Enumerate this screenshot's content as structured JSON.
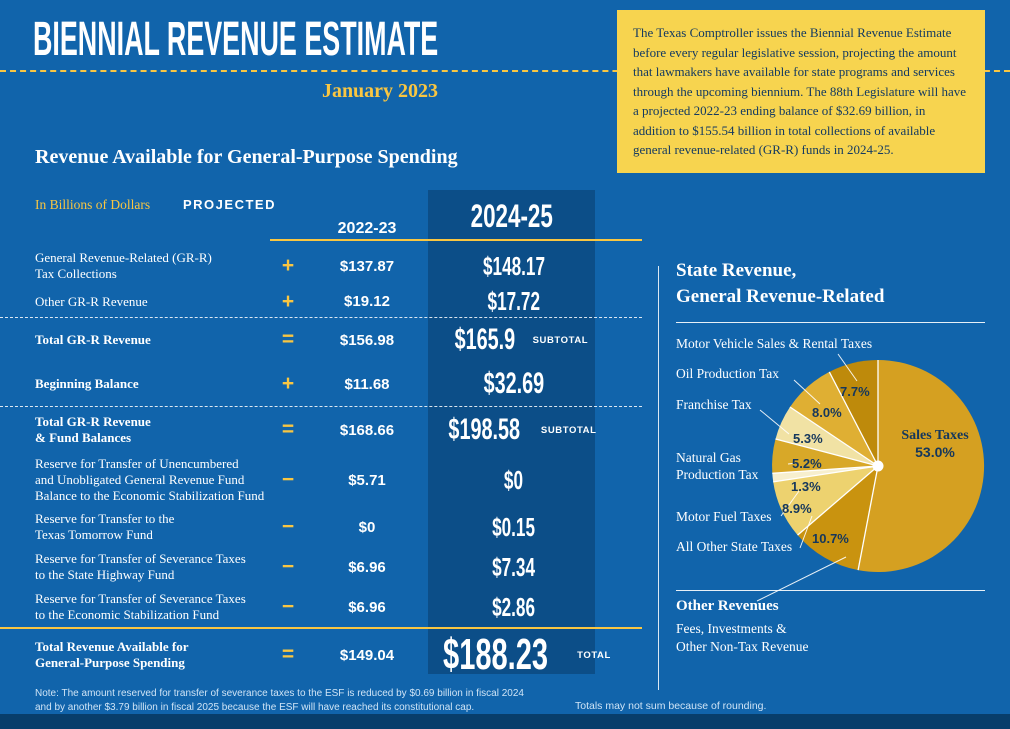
{
  "header": {
    "title": "BIENNIAL REVENUE ESTIMATE",
    "date": "January 2023",
    "callout": "The Texas Comptroller issues the Biennial Revenue Estimate before every regular legislative session, projecting the amount that lawmakers have available for state programs and services through the upcoming biennium. The 88th Legislature will have a projected 2022-23 ending balance of $32.69 billion, in addition to $155.54 billion in total collections of available general revenue-related (GR-R) funds in 2024-25."
  },
  "table": {
    "title": "Revenue Available for General-Purpose Spending",
    "units": "In Billions of Dollars",
    "projected": "PROJECTED",
    "note": "Note: The amount reserved for transfer of severance taxes to the ESF is reduced by $0.69 billion in fiscal 2024 and by another $3.79 billion in fiscal 2025 because the ESF will have reached its constitutional cap.",
    "rounding": "Totals may not sum because of rounding."
  },
  "chart_data": [
    {
      "type": "table",
      "title": "Revenue Available for General-Purpose Spending (Billions of Dollars, Projected)",
      "columns": [
        "2022-23",
        "2024-25"
      ],
      "rows": [
        {
          "label": "General Revenue-Related (GR-R)\nTax Collections",
          "op": "+",
          "v2223": "$137.87",
          "v2425": "$148.17",
          "bold": false,
          "size": "md",
          "lines": 2
        },
        {
          "label": "Other GR-R Revenue",
          "op": "+",
          "v2223": "$19.12",
          "v2425": "$17.72",
          "bold": false,
          "size": "md",
          "lines": 1
        },
        {
          "divider": "dashed"
        },
        {
          "label": "Total GR-R Revenue",
          "op": "=",
          "v2223": "$156.98",
          "v2425": "$165.9",
          "tag": "SUBTOTAL",
          "bold": true,
          "size": "lg",
          "lines": 1
        },
        {
          "label": "Beginning Balance",
          "op": "+",
          "v2223": "$11.68",
          "v2425": "$32.69",
          "bold": true,
          "size": "lg",
          "lines": 1
        },
        {
          "divider": "dashed"
        },
        {
          "label": "Total GR-R Revenue\n& Fund Balances",
          "op": "=",
          "v2223": "$168.66",
          "v2425": "$198.58",
          "tag": "SUBTOTAL",
          "bold": true,
          "size": "lg",
          "lines": 2
        },
        {
          "label": "Reserve for Transfer of Unencumbered\nand Unobligated General Revenue Fund\nBalance to the Economic Stabilization Fund",
          "op": "−",
          "v2223": "$5.71",
          "v2425": "$0",
          "bold": false,
          "size": "md",
          "lines": 3
        },
        {
          "label": "Reserve for Transfer to the\nTexas Tomorrow Fund",
          "op": "−",
          "v2223": "$0",
          "v2425": "$0.15",
          "bold": false,
          "size": "md",
          "lines": 2
        },
        {
          "label": "Reserve for Transfer of Severance Taxes\nto the State Highway Fund",
          "op": "−",
          "v2223": "$6.96",
          "v2425": "$7.34",
          "bold": false,
          "size": "md",
          "lines": 2
        },
        {
          "label": "Reserve for Transfer of Severance Taxes\nto the Economic Stabilization Fund",
          "op": "−",
          "v2223": "$6.96",
          "v2425": "$2.86",
          "bold": false,
          "size": "md",
          "lines": 2
        },
        {
          "divider": "solid"
        },
        {
          "label": "Total Revenue Available for\nGeneral-Purpose Spending",
          "op": "=",
          "v2223": "$149.04",
          "v2425": "$188.23",
          "tag": "TOTAL",
          "bold": true,
          "size": "xl",
          "lines": 2
        }
      ]
    },
    {
      "type": "pie",
      "title": "State Revenue,\nGeneral Revenue-Related",
      "slices": [
        {
          "name": "Sales Taxes",
          "pct": 53.0,
          "color": "#D5A021"
        },
        {
          "name": "Other Revenues",
          "pct": 10.7,
          "color": "#C9930F"
        },
        {
          "name": "All Other State Taxes",
          "pct": 8.9,
          "color": "#EDD26F"
        },
        {
          "name": "Motor Fuel Taxes",
          "pct": 1.3,
          "color": "#F7EFCE"
        },
        {
          "name": "Natural Gas Production Tax",
          "pct": 5.2,
          "color": "#D8A828"
        },
        {
          "name": "Franchise Tax",
          "pct": 5.3,
          "color": "#F1E2A4"
        },
        {
          "name": "Oil Production Tax",
          "pct": 8.0,
          "color": "#DFAF33"
        },
        {
          "name": "Motor Vehicle Sales & Rental Taxes",
          "pct": 7.7,
          "color": "#BE8A0B"
        }
      ],
      "left_labels": [
        "Motor Vehicle Sales & Rental Taxes",
        "Oil Production Tax",
        "Franchise Tax",
        "Natural Gas\nProduction Tax",
        "Motor Fuel Taxes",
        "All Other State Taxes"
      ],
      "other_revenues": {
        "heading": "Other Revenues",
        "sub": "Fees, Investments &\nOther Non-Tax Revenue"
      },
      "legend_position": "left",
      "notes": "Totals may not sum because of rounding."
    }
  ]
}
